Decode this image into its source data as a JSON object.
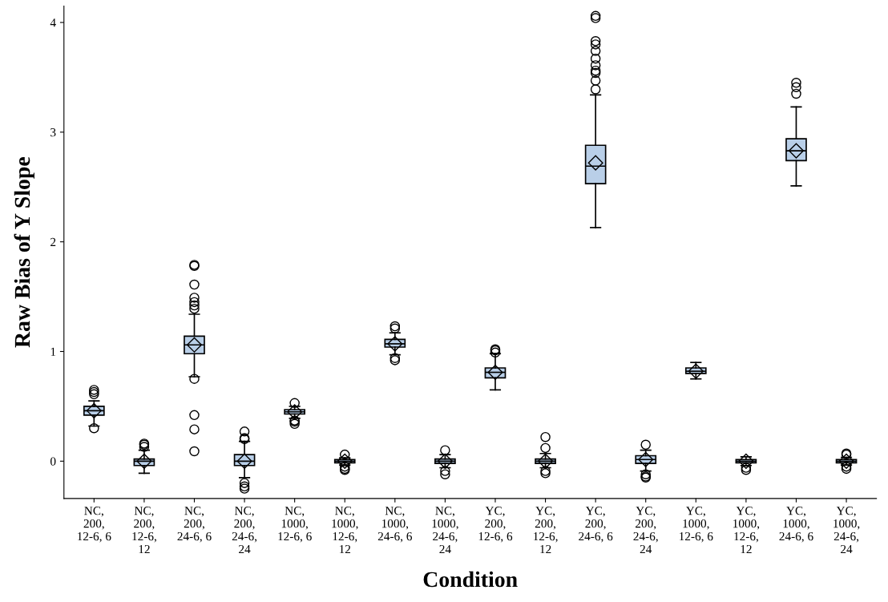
{
  "chart_data": {
    "type": "box",
    "xlabel": "Condition",
    "ylabel": "Raw Bias of Y Slope",
    "categories": [
      "NC,\n200,\n12-6, 6",
      "NC,\n200,\n12-6,\n12",
      "NC,\n200,\n24-6, 6",
      "NC,\n200,\n24-6,\n24",
      "NC,\n1000,\n12-6, 6",
      "NC,\n1000,\n12-6,\n12",
      "NC,\n1000,\n24-6, 6",
      "NC,\n1000,\n24-6,\n24",
      "YC,\n200,\n12-6, 6",
      "YC,\n200,\n12-6,\n12",
      "YC,\n200,\n24-6, 6",
      "YC,\n200,\n24-6,\n24",
      "YC,\n1000,\n12-6, 6",
      "YC,\n1000,\n12-6,\n12",
      "YC,\n1000,\n24-6, 6",
      "YC,\n1000,\n24-6,\n24"
    ],
    "color": "#b9cfe8",
    "marker": "diamond",
    "ylim": [
      -0.34,
      4.15
    ],
    "yticks": [
      0,
      1,
      2,
      3,
      4
    ],
    "grid": false,
    "boxes": [
      {
        "low": 0.32,
        "q1": 0.42,
        "median": 0.46,
        "q3": 0.5,
        "high": 0.55,
        "mean": 0.46,
        "outliers": [
          0.65,
          0.63,
          0.61,
          0.3
        ]
      },
      {
        "low": -0.11,
        "q1": -0.04,
        "median": 0.0,
        "q3": 0.02,
        "high": 0.1,
        "mean": 0.0,
        "outliers": [
          0.16,
          0.15,
          0.13
        ]
      },
      {
        "low": 0.77,
        "q1": 0.98,
        "median": 1.06,
        "q3": 1.14,
        "high": 1.34,
        "mean": 1.06,
        "outliers": [
          1.79,
          1.78,
          1.61,
          1.49,
          1.45,
          1.42,
          1.39,
          0.75,
          0.42,
          0.29,
          0.09
        ]
      },
      {
        "low": -0.15,
        "q1": -0.04,
        "median": 0.0,
        "q3": 0.06,
        "high": 0.18,
        "mean": 0.0,
        "outliers": [
          0.27,
          0.21,
          0.2,
          -0.2,
          -0.23,
          -0.25
        ]
      },
      {
        "low": 0.39,
        "q1": 0.43,
        "median": 0.45,
        "q3": 0.47,
        "high": 0.5,
        "mean": 0.45,
        "outliers": [
          0.53,
          0.37,
          0.36,
          0.34
        ]
      },
      {
        "low": -0.035,
        "q1": -0.015,
        "median": 0.0,
        "q3": 0.015,
        "high": 0.03,
        "mean": 0.0,
        "outliers": [
          0.06,
          -0.05,
          -0.07,
          -0.08
        ]
      },
      {
        "low": 0.97,
        "q1": 1.04,
        "median": 1.07,
        "q3": 1.11,
        "high": 1.17,
        "mean": 1.07,
        "outliers": [
          1.23,
          1.21,
          0.94,
          0.92
        ]
      },
      {
        "low": -0.06,
        "q1": -0.02,
        "median": 0.0,
        "q3": 0.02,
        "high": 0.06,
        "mean": 0.0,
        "outliers": [
          0.1,
          -0.09,
          -0.12
        ]
      },
      {
        "low": 0.65,
        "q1": 0.76,
        "median": 0.81,
        "q3": 0.85,
        "high": 0.98,
        "mean": 0.81,
        "outliers": [
          1.02,
          1.01,
          0.99
        ]
      },
      {
        "low": -0.06,
        "q1": -0.02,
        "median": 0.0,
        "q3": 0.02,
        "high": 0.07,
        "mean": 0.0,
        "outliers": [
          0.22,
          0.12,
          -0.09,
          -0.11
        ]
      },
      {
        "low": 2.13,
        "q1": 2.53,
        "median": 2.69,
        "q3": 2.88,
        "high": 3.34,
        "mean": 2.72,
        "outliers": [
          4.06,
          4.04,
          3.83,
          3.8,
          3.74,
          3.67,
          3.61,
          3.56,
          3.54,
          3.47,
          3.39
        ]
      },
      {
        "low": -0.09,
        "q1": -0.02,
        "median": 0.015,
        "q3": 0.05,
        "high": 0.1,
        "mean": 0.015,
        "outliers": [
          0.15,
          -0.12,
          -0.14,
          -0.15
        ]
      },
      {
        "low": 0.75,
        "q1": 0.8,
        "median": 0.82,
        "q3": 0.85,
        "high": 0.9,
        "mean": 0.82
      },
      {
        "low": -0.04,
        "q1": -0.015,
        "median": 0.0,
        "q3": 0.015,
        "high": 0.04,
        "mean": 0.0,
        "outliers": [
          -0.06,
          -0.08
        ]
      },
      {
        "low": 2.51,
        "q1": 2.74,
        "median": 2.83,
        "q3": 2.94,
        "high": 3.23,
        "mean": 2.83,
        "outliers": [
          3.45,
          3.41,
          3.35
        ]
      },
      {
        "low": -0.035,
        "q1": -0.015,
        "median": 0.0,
        "q3": 0.015,
        "high": 0.035,
        "mean": 0.0,
        "outliers": [
          0.07,
          0.06,
          -0.05,
          -0.07
        ]
      }
    ]
  }
}
